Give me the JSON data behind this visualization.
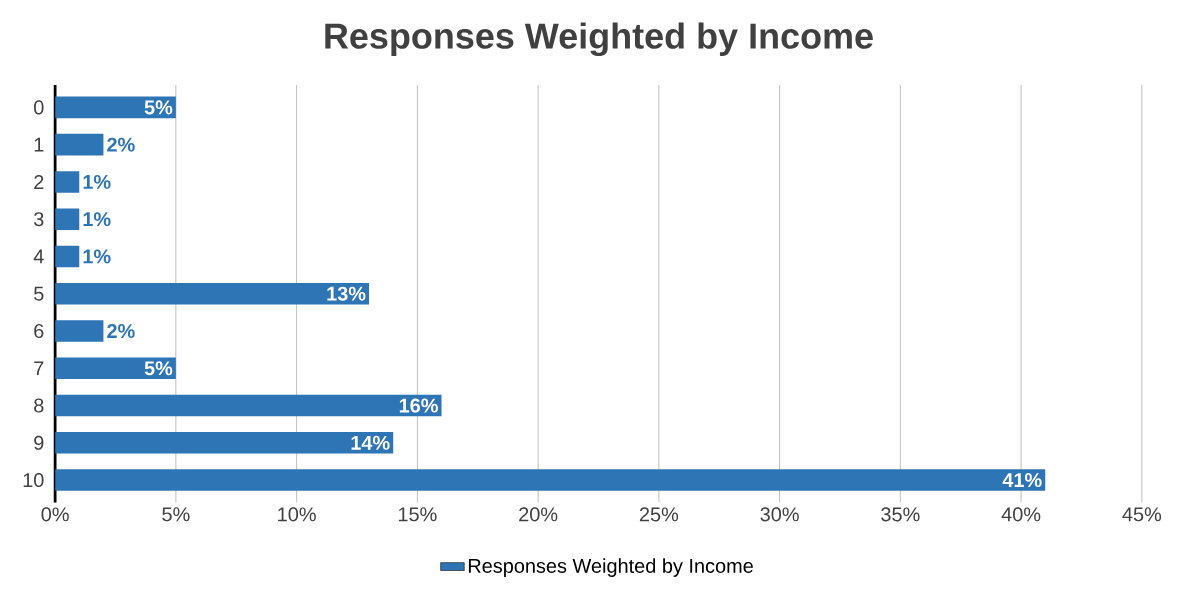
{
  "chart_data": {
    "type": "bar",
    "orientation": "horizontal",
    "title": "Responses Weighted by Income",
    "categories": [
      "0",
      "1",
      "2",
      "3",
      "4",
      "5",
      "6",
      "7",
      "8",
      "9",
      "10"
    ],
    "series": [
      {
        "name": "Responses Weighted by Income",
        "color": "#2e75b6",
        "values": [
          5,
          2,
          1,
          1,
          1,
          13,
          2,
          5,
          16,
          14,
          41
        ],
        "value_labels": [
          "5%",
          "2%",
          "1%",
          "1%",
          "1%",
          "13%",
          "2%",
          "5%",
          "16%",
          "14%",
          "41%"
        ]
      }
    ],
    "xlim": [
      0,
      45
    ],
    "xticks": [
      {
        "value": 0,
        "label": "0%"
      },
      {
        "value": 5,
        "label": "5%"
      },
      {
        "value": 10,
        "label": "10%"
      },
      {
        "value": 15,
        "label": "15%"
      },
      {
        "value": 20,
        "label": "20%"
      },
      {
        "value": 25,
        "label": "25%"
      },
      {
        "value": 30,
        "label": "30%"
      },
      {
        "value": 35,
        "label": "35%"
      },
      {
        "value": 40,
        "label": "40%"
      },
      {
        "value": 45,
        "label": "45%"
      }
    ],
    "grid": "x",
    "legend": "bottom"
  }
}
